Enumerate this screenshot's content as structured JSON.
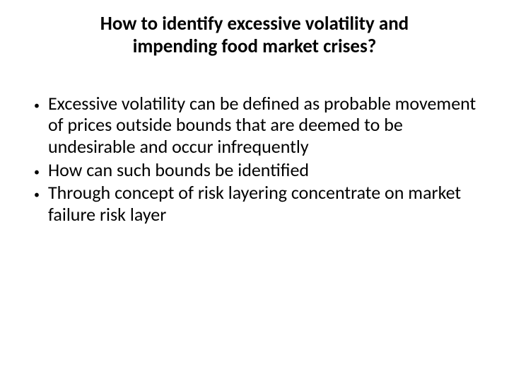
{
  "slide": {
    "title": "How to identify excessive volatility and impending food market crises?",
    "title_fontsize": 27,
    "title_fontweight": 700,
    "title_color": "#000000",
    "body_fontsize": 26,
    "body_color": "#000000",
    "background_color": "#ffffff",
    "bullets": [
      {
        "text": "Excessive volatility can be defined as probable movement of prices outside bounds that are deemed to be undesirable and occur infrequently"
      },
      {
        "text": "How can such bounds be identified"
      },
      {
        "text": "Through concept of risk layering concentrate on market failure risk layer"
      }
    ]
  }
}
